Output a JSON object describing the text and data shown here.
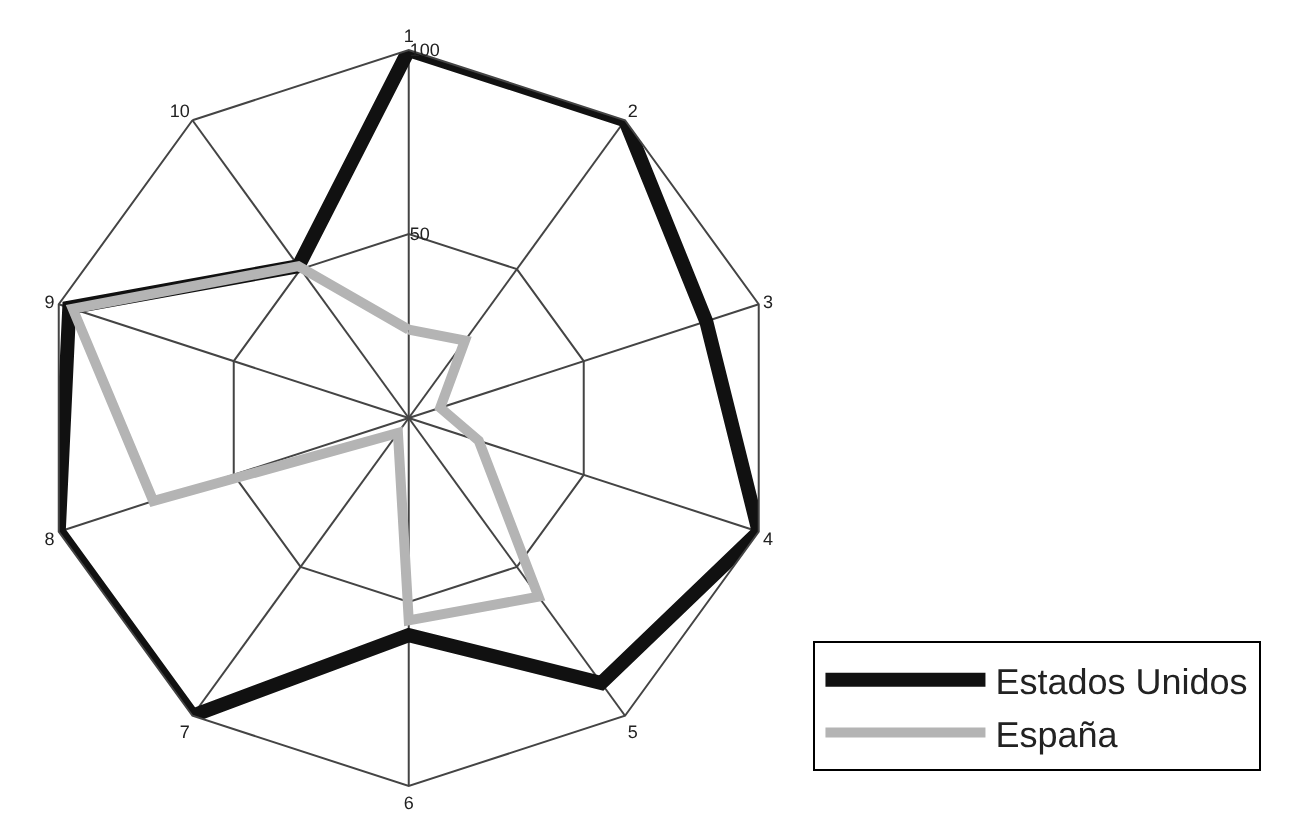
{
  "chart_data": {
    "type": "radar",
    "categories": [
      "1",
      "2",
      "3",
      "4",
      "5",
      "6",
      "7",
      "8",
      "9",
      "10"
    ],
    "series": [
      {
        "name": "Estados Unidos",
        "color": "#111111",
        "values": [
          100,
          100,
          85,
          100,
          89,
          59,
          100,
          100,
          97,
          51
        ]
      },
      {
        "name": "España",
        "color": "#b4b4b4",
        "values": [
          24,
          26,
          9,
          20,
          60,
          55,
          5,
          73,
          96,
          51
        ]
      }
    ],
    "ylim": [
      0,
      100
    ],
    "yticks": [
      50,
      100
    ],
    "grid": true,
    "legend": "bottom right",
    "marker": "none",
    "line_style": "solid"
  }
}
